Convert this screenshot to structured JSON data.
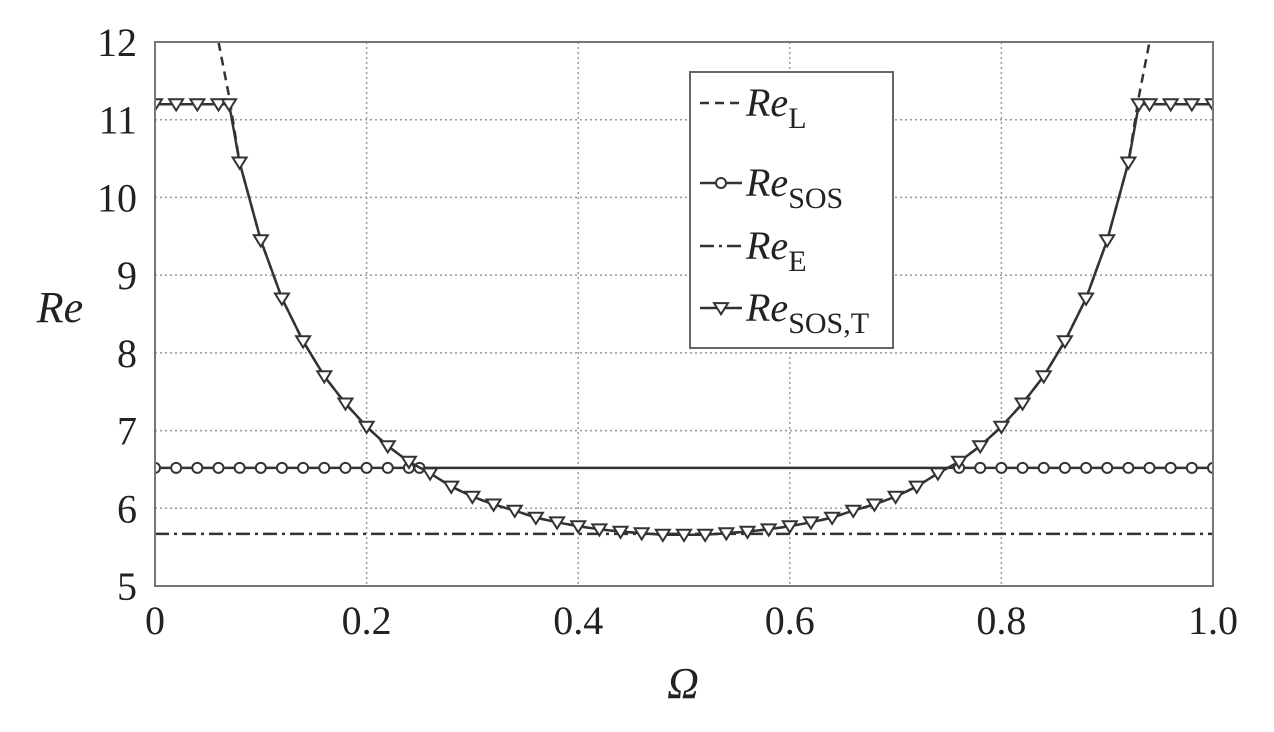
{
  "chart_data": {
    "type": "line",
    "title": "",
    "xlabel": "Ω",
    "ylabel": "Re",
    "xlim": [
      0,
      1
    ],
    "ylim": [
      5,
      12
    ],
    "grid": true,
    "legend_placement": "top-center",
    "x_ticks": [
      "0",
      "0.2",
      "0.4",
      "0.6",
      "0.8",
      "1.0"
    ],
    "y_ticks": [
      "5",
      "6",
      "7",
      "8",
      "9",
      "10",
      "11",
      "12"
    ],
    "series": [
      {
        "name": "Re_L",
        "name_main": "Re",
        "name_sub": "L",
        "style": "dashed",
        "marker": "none",
        "x": [
          0.06,
          0.07,
          0.08,
          0.1,
          0.12,
          0.14,
          0.16,
          0.18,
          0.2,
          0.22,
          0.24,
          0.26,
          0.28,
          0.3,
          0.32,
          0.34,
          0.36,
          0.38,
          0.4,
          0.42,
          0.44,
          0.46,
          0.48,
          0.5,
          0.52,
          0.54,
          0.56,
          0.58,
          0.6,
          0.62,
          0.64,
          0.66,
          0.68,
          0.7,
          0.72,
          0.74,
          0.76,
          0.78,
          0.8,
          0.82,
          0.84,
          0.86,
          0.88,
          0.9,
          0.92,
          0.93,
          0.94
        ],
        "y": [
          12.0,
          11.3,
          10.45,
          9.45,
          8.7,
          8.15,
          7.7,
          7.35,
          7.05,
          6.8,
          6.6,
          6.45,
          6.28,
          6.15,
          6.05,
          5.97,
          5.88,
          5.82,
          5.77,
          5.73,
          5.7,
          5.68,
          5.66,
          5.66,
          5.66,
          5.68,
          5.7,
          5.73,
          5.77,
          5.82,
          5.88,
          5.97,
          6.05,
          6.15,
          6.28,
          6.45,
          6.6,
          6.8,
          7.05,
          7.35,
          7.7,
          8.15,
          8.7,
          9.45,
          10.45,
          11.3,
          12.0
        ]
      },
      {
        "name": "Re_SOS",
        "name_main": "Re",
        "name_sub": "SOS",
        "style": "solid",
        "marker": "circle",
        "x": [
          0,
          0.02,
          0.04,
          0.06,
          0.08,
          0.1,
          0.12,
          0.14,
          0.16,
          0.18,
          0.2,
          0.22,
          0.24,
          0.25,
          0.76,
          0.78,
          0.8,
          0.82,
          0.84,
          0.86,
          0.88,
          0.9,
          0.92,
          0.94,
          0.96,
          0.98,
          1.0
        ],
        "y": [
          6.52,
          6.52,
          6.52,
          6.52,
          6.52,
          6.52,
          6.52,
          6.52,
          6.52,
          6.52,
          6.52,
          6.52,
          6.52,
          6.52,
          6.52,
          6.52,
          6.52,
          6.52,
          6.52,
          6.52,
          6.52,
          6.52,
          6.52,
          6.52,
          6.52,
          6.52,
          6.52
        ]
      },
      {
        "name": "Re_E",
        "name_main": "Re",
        "name_sub": "E",
        "style": "dashdot",
        "marker": "none",
        "x": [
          0,
          1.0
        ],
        "y": [
          5.67,
          5.67
        ]
      },
      {
        "name": "Re_SOS,T",
        "name_main": "Re",
        "name_sub": "SOS,T",
        "style": "solid",
        "marker": "triangle-down",
        "x": [
          0,
          0.02,
          0.04,
          0.06,
          0.07,
          0.08,
          0.1,
          0.12,
          0.14,
          0.16,
          0.18,
          0.2,
          0.22,
          0.24,
          0.26,
          0.28,
          0.3,
          0.32,
          0.34,
          0.36,
          0.38,
          0.4,
          0.42,
          0.44,
          0.46,
          0.48,
          0.5,
          0.52,
          0.54,
          0.56,
          0.58,
          0.6,
          0.62,
          0.64,
          0.66,
          0.68,
          0.7,
          0.72,
          0.74,
          0.76,
          0.78,
          0.8,
          0.82,
          0.84,
          0.86,
          0.88,
          0.9,
          0.92,
          0.93,
          0.94,
          0.96,
          0.98,
          1.0
        ],
        "y": [
          11.2,
          11.2,
          11.2,
          11.2,
          11.2,
          10.45,
          9.45,
          8.7,
          8.15,
          7.7,
          7.35,
          7.05,
          6.8,
          6.6,
          6.45,
          6.28,
          6.15,
          6.05,
          5.97,
          5.88,
          5.82,
          5.77,
          5.73,
          5.7,
          5.68,
          5.66,
          5.66,
          5.66,
          5.68,
          5.7,
          5.73,
          5.77,
          5.82,
          5.88,
          5.97,
          6.05,
          6.15,
          6.28,
          6.45,
          6.6,
          6.8,
          7.05,
          7.35,
          7.7,
          8.15,
          8.7,
          9.45,
          10.45,
          11.2,
          11.2,
          11.2,
          11.2,
          11.2
        ]
      }
    ]
  }
}
